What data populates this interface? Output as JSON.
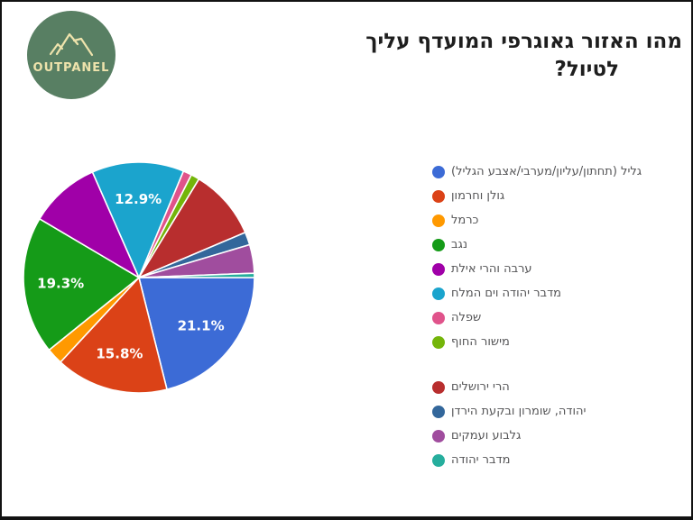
{
  "logo": {
    "text": "OUTPANEL",
    "circle_color": "#587f63",
    "art_color": "#eee3ac"
  },
  "title": {
    "line1": "מהו האזור גאוגרפי המועדף עליך",
    "line2": "לטיול?",
    "full": "מהו האזור גאוגרפי המועדף עליך לטיול?"
  },
  "chart_data": {
    "type": "pie",
    "title": "מהו האזור גאוגרפי המועדף עליך לטיול?",
    "legend_position": "right",
    "start_angle_deg": 90,
    "direction": "clockwise",
    "slice_border_color": "#ffffff",
    "label_color": "#ffffff",
    "slices": [
      {
        "label": "גליל (תחתון/עליון/מערבי/אצבע הגליל)",
        "value": 21.1,
        "shown_percent": "21.1%",
        "labeled": true,
        "color": "#3c6bd6"
      },
      {
        "label": "גולן וחרמון",
        "value": 15.8,
        "shown_percent": "15.8%",
        "labeled": true,
        "color": "#db4217"
      },
      {
        "label": "כרמל",
        "value": 2.3,
        "shown_percent": null,
        "labeled": false,
        "color": "#ff9900"
      },
      {
        "label": "נגב",
        "value": 19.3,
        "shown_percent": "19.3%",
        "labeled": true,
        "color": "#159b18"
      },
      {
        "label": "ערבה והרי אילת",
        "value": 9.9,
        "shown_percent": null,
        "labeled": false,
        "color": "#a000a8"
      },
      {
        "label": "מדבר יהודה וים המלח",
        "value": 12.9,
        "shown_percent": "12.9%",
        "labeled": true,
        "color": "#1ba4cd"
      },
      {
        "label": "שפלה",
        "value": 1.2,
        "shown_percent": null,
        "labeled": false,
        "color": "#e0538b"
      },
      {
        "label": "מישור החוף",
        "value": 1.2,
        "shown_percent": null,
        "labeled": false,
        "color": "#74b50a"
      },
      {
        "label": "הרי ירושלים",
        "value": 9.9,
        "shown_percent": null,
        "labeled": false,
        "color": "#b82e2e"
      },
      {
        "label": "יהודה, שומרון ובקעת הירדן",
        "value": 1.8,
        "shown_percent": null,
        "labeled": false,
        "color": "#33679b"
      },
      {
        "label": "גלבוע ועמקים",
        "value": 4.0,
        "shown_percent": null,
        "labeled": false,
        "color": "#a04d9e"
      },
      {
        "label": "מדבר יהודה",
        "value": 0.6,
        "shown_percent": null,
        "labeled": false,
        "color": "#26ae9d"
      }
    ],
    "legend_groups": [
      [
        0,
        1,
        2,
        3,
        4,
        5,
        6,
        7
      ],
      [
        8,
        9,
        10,
        11
      ]
    ]
  }
}
